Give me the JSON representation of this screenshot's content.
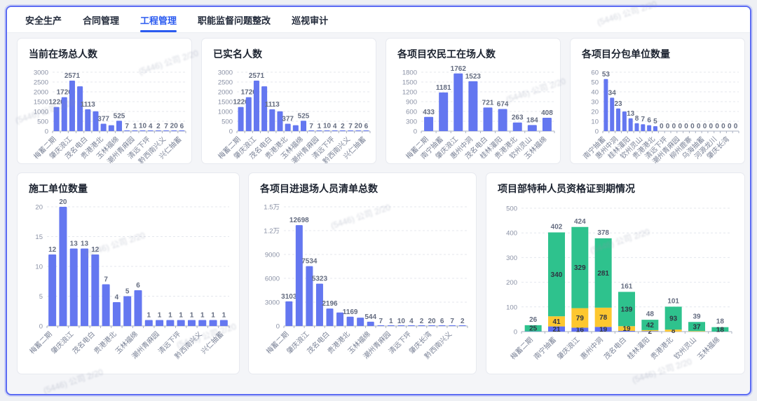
{
  "nav": {
    "tabs": [
      {
        "label": "安全生产",
        "active": false
      },
      {
        "label": "合同管理",
        "active": false
      },
      {
        "label": "工程管理",
        "active": true
      },
      {
        "label": "职能监督问题整改",
        "active": false
      },
      {
        "label": "巡视审计",
        "active": false
      }
    ]
  },
  "colors": {
    "bar": "#6477f0",
    "green": "#2ec28d",
    "yellow": "#fdc72f",
    "blue_segment": "#5f6ef2",
    "accent": "#2b5bf0",
    "window_border": "#5b6bf3"
  },
  "watermark": {
    "text": "(5446) 公司 2/20"
  },
  "chart_data": [
    {
      "type": "bar",
      "title": "当前在场总人数",
      "ylim": [
        0,
        3000
      ],
      "yticks": [
        "0",
        "500",
        "1000",
        "1500",
        "2000",
        "2500",
        "3000"
      ],
      "ytick_values": [
        0,
        500,
        1000,
        1500,
        2000,
        2500,
        3000
      ],
      "categories": [
        "梅蓄二期",
        "",
        "肇庆浪江",
        "",
        "茂名电白",
        "",
        "贵港港北",
        "",
        "玉林福绵",
        "",
        "潮州青麻园",
        "",
        "清远下坪",
        "",
        "黔西南兴义",
        "",
        "兴仁抽蓄"
      ],
      "values": [
        1226,
        1726,
        2571,
        2280,
        1113,
        1010,
        377,
        300,
        525,
        7,
        1,
        10,
        4,
        2,
        7,
        20,
        6
      ],
      "labels": [
        "1226",
        "1726",
        "2571",
        "",
        "1113",
        "",
        "377",
        "",
        "525",
        "7",
        "1",
        "10",
        "4",
        "2",
        "7",
        "20",
        "6"
      ],
      "color": "#6477f0"
    },
    {
      "type": "bar",
      "title": "已实名人数",
      "ylim": [
        0,
        3000
      ],
      "yticks": [
        "0",
        "500",
        "1000",
        "1500",
        "2000",
        "2500",
        "3000"
      ],
      "ytick_values": [
        0,
        500,
        1000,
        1500,
        2000,
        2500,
        3000
      ],
      "categories": [
        "梅蓄二期",
        "",
        "肇庆浪江",
        "",
        "茂名电白",
        "",
        "贵港港北",
        "",
        "玉林福绵",
        "",
        "潮州青麻园",
        "",
        "清远下坪",
        "",
        "黔西南兴义",
        "",
        "兴仁抽蓄"
      ],
      "values": [
        1226,
        1726,
        2571,
        2280,
        1113,
        1010,
        377,
        300,
        525,
        7,
        1,
        10,
        4,
        2,
        7,
        20,
        6
      ],
      "labels": [
        "1226",
        "1726",
        "2571",
        "",
        "1113",
        "",
        "377",
        "",
        "525",
        "7",
        "1",
        "10",
        "4",
        "2",
        "7",
        "20",
        "6"
      ],
      "color": "#6477f0"
    },
    {
      "type": "bar",
      "title": "各项目农民工在场人数",
      "ylim": [
        0,
        1800
      ],
      "yticks": [
        "0",
        "300",
        "600",
        "900",
        "1200",
        "1500",
        "1800"
      ],
      "ytick_values": [
        0,
        300,
        600,
        900,
        1200,
        1500,
        1800
      ],
      "categories": [
        "梅蓄二期",
        "南宁抽蓄",
        "肇庆浪江",
        "惠州中洞",
        "茂名电白",
        "桂林灌阳",
        "贵港港北",
        "钦州灵山",
        "玉林福绵"
      ],
      "values": [
        433,
        1181,
        1762,
        1523,
        721,
        674,
        263,
        184,
        408
      ],
      "labels": [
        "433",
        "1181",
        "1762",
        "1523",
        "721",
        "674",
        "263",
        "184",
        "408"
      ],
      "color": "#6477f0"
    },
    {
      "type": "bar",
      "title": "各项目分包单位数量",
      "ylim": [
        0,
        60
      ],
      "yticks": [
        "0",
        "10",
        "20",
        "30",
        "40",
        "50",
        "60"
      ],
      "ytick_values": [
        0,
        10,
        20,
        30,
        40,
        50,
        60
      ],
      "categories": [
        "南宁抽蓄",
        "",
        "惠州中洞",
        "",
        "桂林灌阳",
        "",
        "钦州灵山",
        "",
        "贵港港北",
        "",
        "清远下坪",
        "",
        "潮州青麻园",
        "",
        "柳州鹿寨",
        "",
        "乌海抽蓄",
        "",
        "河源龙川",
        "",
        "肇庆长湾",
        ""
      ],
      "values": [
        53,
        34,
        23,
        20,
        13,
        8,
        7,
        6,
        5,
        0,
        0,
        0,
        0,
        0,
        0,
        0,
        0,
        0,
        0,
        0,
        0,
        0
      ],
      "labels": [
        "53",
        "34",
        "23",
        "",
        "13",
        "8",
        "7",
        "6",
        "5",
        "0",
        "0",
        "0",
        "0",
        "0",
        "0",
        "0",
        "0",
        "0",
        "0",
        "0",
        "0",
        "0"
      ],
      "color": "#6477f0"
    },
    {
      "type": "bar",
      "title": "施工单位数量",
      "ylim": [
        0,
        20
      ],
      "yticks": [
        "0",
        "5",
        "10",
        "15",
        "20"
      ],
      "ytick_values": [
        0,
        5,
        10,
        15,
        20
      ],
      "categories": [
        "梅蓄二期",
        "",
        "肇庆浪江",
        "",
        "茂名电白",
        "",
        "贵港港北",
        "",
        "玉林福绵",
        "",
        "潮州青麻园",
        "",
        "清远下坪",
        "",
        "黔西南兴义",
        "",
        "兴仁抽蓄"
      ],
      "values": [
        12,
        20,
        13,
        13,
        12,
        7,
        4,
        5,
        6,
        1,
        1,
        1,
        1,
        1,
        1,
        1,
        1
      ],
      "labels": [
        "12",
        "20",
        "13",
        "13",
        "12",
        "7",
        "4",
        "5",
        "6",
        "1",
        "1",
        "1",
        "1",
        "1",
        "1",
        "1",
        "1"
      ],
      "color": "#6477f0"
    },
    {
      "type": "bar",
      "title": "各项目进退场人员清单总数",
      "ylim": [
        0,
        15000
      ],
      "yticks": [
        "0",
        "3000",
        "6000",
        "9000",
        "1.2万",
        "1.5万"
      ],
      "ytick_values": [
        0,
        3000,
        6000,
        9000,
        12000,
        15000
      ],
      "categories": [
        "梅蓄二期",
        "",
        "肇庆浪江",
        "",
        "茂名电白",
        "",
        "贵港港北",
        "",
        "玉林福绵",
        "",
        "潮州青麻园",
        "",
        "清远下坪",
        "",
        "肇庆长湾",
        "",
        "黔西南兴义",
        ""
      ],
      "values": [
        3103,
        12698,
        7534,
        5323,
        2196,
        1700,
        1169,
        1050,
        544,
        7,
        1,
        10,
        4,
        2,
        20,
        6,
        7,
        2
      ],
      "labels": [
        "3103",
        "12698",
        "7534",
        "5323",
        "2196",
        "",
        "1169",
        "",
        "544",
        "7",
        "1",
        "10",
        "4",
        "2",
        "20",
        "6",
        "7",
        "2"
      ],
      "color": "#6477f0"
    },
    {
      "type": "stacked",
      "title": "项目部特种人员资格证到期情况",
      "ylim": [
        0,
        500
      ],
      "yticks": [
        "0",
        "100",
        "200",
        "300",
        "400",
        "500"
      ],
      "ytick_values": [
        0,
        100,
        200,
        300,
        400,
        500
      ],
      "categories": [
        "梅蓄二期",
        "南宁抽蓄",
        "肇庆浪江",
        "惠州中洞",
        "茂名电白",
        "桂林灌阳",
        "贵港港北",
        "钦州灵山",
        "玉林福绵"
      ],
      "series": [
        {
          "name": "segment-blue",
          "color": "#5f6ef2",
          "values": [
            1,
            21,
            16,
            19,
            3,
            2,
            0,
            0,
            0
          ],
          "labels": [
            "",
            "21",
            "16",
            "19",
            "",
            "2",
            "",
            "",
            ""
          ]
        },
        {
          "name": "segment-yellow",
          "color": "#fdc72f",
          "values": [
            0,
            41,
            79,
            78,
            19,
            4,
            8,
            2,
            0
          ],
          "labels": [
            "",
            "41",
            "79",
            "78",
            "19",
            "",
            "8",
            "",
            ""
          ]
        },
        {
          "name": "segment-green",
          "color": "#2ec28d",
          "values": [
            25,
            340,
            329,
            281,
            139,
            42,
            93,
            37,
            18
          ],
          "labels": [
            "25",
            "340",
            "329",
            "281",
            "139",
            "42",
            "93",
            "37",
            "18"
          ]
        }
      ],
      "totals": [
        "26",
        "402",
        "424",
        "378",
        "161",
        "48",
        "101",
        "39",
        "18"
      ]
    }
  ]
}
